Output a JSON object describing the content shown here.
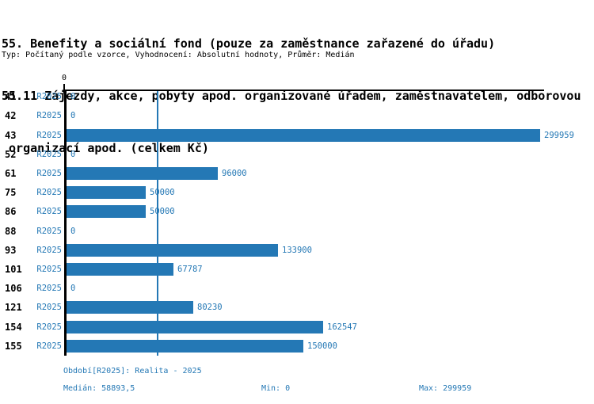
{
  "colors": {
    "accent": "#2478b5",
    "text": "#000000",
    "background": "#ffffff"
  },
  "title": {
    "line1": "55. Benefity a sociální fond (pouze za zaměstnance zařazené do úřadu)",
    "line2": "55.11 Zájezdy, akce, pobyty apod. organizované úřadem, zaměstnavatelem, odborovou",
    "line3": " organizací apod. (celkem Kč)"
  },
  "subtitle": "Typ: Počítaný podle vzorce, Vyhodnocení: Absolutní hodnoty, Průměr: Medián",
  "chart_data": {
    "type": "bar",
    "orientation": "horizontal",
    "title": "55.11 Zájezdy, akce, pobyty apod. organizované úřadem, zaměstnavatelem, odborovou organizací apod. (celkem Kč)",
    "categories": [
      "41",
      "42",
      "43",
      "52",
      "61",
      "75",
      "86",
      "88",
      "93",
      "101",
      "106",
      "121",
      "154",
      "155"
    ],
    "series": [
      {
        "name": "R2025",
        "values": [
          0,
          0,
          299959,
          0,
          96000,
          50000,
          50000,
          0,
          133900,
          67787,
          0,
          80230,
          162547,
          150000
        ]
      }
    ],
    "value_labels": [
      "0",
      "0",
      "299959",
      "0",
      "96000",
      "50000",
      "50000",
      "0",
      "133900",
      "67787",
      "0",
      "80230",
      "162547",
      "150000"
    ],
    "xlim": [
      0,
      299959
    ],
    "x_axis_tick_label": "0",
    "median": 58893.5,
    "min": 0,
    "max": 299959,
    "grid": false,
    "legend": false
  },
  "footer": {
    "period": "Období[R2025]: Realita - 2025",
    "median": "Medián: 58893,5",
    "min": "Min: 0",
    "max": "Max: 299959"
  }
}
